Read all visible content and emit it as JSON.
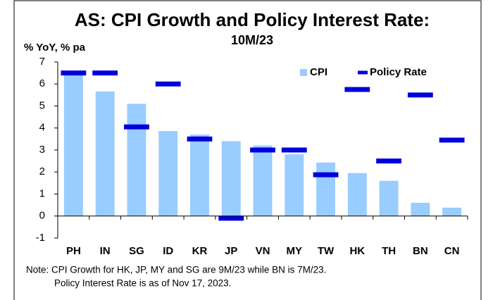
{
  "chart_data": {
    "type": "bar",
    "title": "AS: CPI Growth and Policy Interest Rate:",
    "subtitle": "10M/23",
    "y_label": "% YoY, % pa",
    "categories": [
      "PH",
      "IN",
      "SG",
      "ID",
      "KR",
      "JP",
      "VN",
      "MY",
      "TW",
      "HK",
      "TH",
      "BN",
      "CN"
    ],
    "series": [
      {
        "name": "CPI",
        "type": "bar",
        "color": "#99ccff",
        "values": [
          6.5,
          5.66,
          5.1,
          3.86,
          3.7,
          3.4,
          3.2,
          2.8,
          2.43,
          1.95,
          1.6,
          0.6,
          0.38
        ]
      },
      {
        "name": "Policy Rate",
        "type": "marker",
        "color": "#0000dd",
        "values": [
          6.5,
          6.5,
          4.05,
          6.0,
          3.5,
          -0.1,
          3.0,
          3.0,
          1.875,
          5.75,
          2.5,
          5.5,
          3.45
        ]
      }
    ],
    "ylim": [
      -1,
      7
    ],
    "yticks": [
      -1,
      0,
      1,
      2,
      3,
      4,
      5,
      6,
      7
    ],
    "grid": false,
    "legend": "top-right",
    "notes": [
      "Note: CPI Growth for HK, JP, MY and SG are 9M/23 while BN is 7M/23.",
      "Policy Interest Rate is as of Nov 17, 2023."
    ]
  }
}
